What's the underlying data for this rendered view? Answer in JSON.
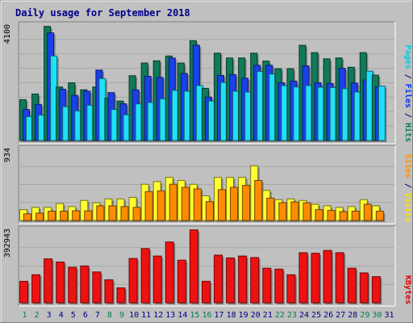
{
  "chart_data": {
    "type": "bar",
    "title": "Daily usage for September 2018",
    "categories": [
      "1",
      "2",
      "3",
      "4",
      "5",
      "6",
      "7",
      "8",
      "9",
      "10",
      "11",
      "12",
      "13",
      "14",
      "15",
      "16",
      "17",
      "18",
      "19",
      "20",
      "21",
      "22",
      "23",
      "24",
      "25",
      "26",
      "27",
      "28",
      "29",
      "30",
      "31"
    ],
    "weekend_days": [
      "1",
      "2",
      "8",
      "9",
      "15",
      "16",
      "22",
      "23",
      "29",
      "30"
    ],
    "panels": [
      {
        "id": "hits-files-pages",
        "max_label": "4100",
        "ylim": [
          0,
          4100
        ],
        "axis_labels": [
          {
            "text": "Pages",
            "color": "#00c8e8"
          },
          {
            "text": " / ",
            "color": "#00008b"
          },
          {
            "text": "Files",
            "color": "#0033ff"
          },
          {
            "text": " / ",
            "color": "#00008b"
          },
          {
            "text": "Hits",
            "color": "#0a7a5a"
          }
        ],
        "series": [
          {
            "name": "Hits",
            "color": "#0f7a5a",
            "values": [
              1450,
              1650,
              4050,
              1900,
              2050,
              1800,
              1900,
              1500,
              1400,
              2300,
              2750,
              2830,
              3000,
              2750,
              3540,
              1850,
              3100,
              2930,
              2930,
              3100,
              2820,
              2550,
              2550,
              3380,
              3120,
              2900,
              2930,
              2600,
              3120,
              2320,
              0
            ]
          },
          {
            "name": "Files",
            "color": "#1a40e8",
            "values": [
              1100,
              1280,
              3820,
              1820,
              1600,
              1750,
              2500,
              1700,
              1300,
              1800,
              2280,
              2240,
              2930,
              2380,
              3380,
              1540,
              2310,
              2340,
              2210,
              2670,
              2670,
              2050,
              2110,
              2650,
              2050,
              2020,
              2560,
              2040,
              2150,
              1910,
              0
            ]
          },
          {
            "name": "Pages",
            "color": "#20e0f8",
            "values": [
              850,
              900,
              3000,
              1200,
              1050,
              1250,
              2200,
              1100,
              910,
              1300,
              1350,
              1480,
              1780,
              1750,
              1950,
              1400,
              2060,
              1750,
              1720,
              2450,
              2360,
              1950,
              1900,
              1950,
              1890,
              1880,
              1840,
              1720,
              2460,
              1930,
              0
            ]
          }
        ]
      },
      {
        "id": "visits-sites",
        "max_label": "934",
        "ylim": [
          0,
          934
        ],
        "axis_labels": [
          {
            "text": "Sites",
            "color": "#ff8c00"
          },
          {
            "text": " / ",
            "color": "#00008b"
          },
          {
            "text": "Visits",
            "color": "#ffe000"
          }
        ],
        "series": [
          {
            "name": "Visits",
            "color": "#ffff33",
            "values": [
              140,
              170,
              170,
              220,
              180,
              260,
              230,
              280,
              280,
              300,
              470,
              505,
              560,
              520,
              470,
              320,
              560,
              560,
              560,
              710,
              390,
              270,
              280,
              260,
              210,
              190,
              170,
              180,
              270,
              190,
              0
            ]
          },
          {
            "name": "Sites",
            "color": "#ff8c00",
            "values": [
              85,
              95,
              120,
              120,
              125,
              125,
              190,
              190,
              180,
              170,
              375,
              385,
              470,
              430,
              410,
              245,
              400,
              430,
              455,
              520,
              290,
              230,
              240,
              230,
              140,
              130,
              115,
              120,
              210,
              120,
              0
            ]
          }
        ]
      },
      {
        "id": "kbytes",
        "max_label": "392943",
        "ylim": [
          0,
          392943
        ],
        "axis_labels": [
          {
            "text": "KBytes",
            "color": "#dd0000"
          }
        ],
        "series": [
          {
            "name": "KBytes",
            "color": "#ee1111",
            "values": [
              115000,
              150000,
              235000,
              218000,
              190000,
              197000,
              165000,
              123000,
              80000,
              237000,
              290000,
              250000,
              325000,
              228000,
              390000,
              115000,
              255000,
              240000,
              250000,
              242000,
              185000,
              180000,
              150000,
              268000,
              265000,
              280000,
              268000,
              185000,
              160000,
              140000,
              0
            ]
          }
        ]
      }
    ]
  }
}
